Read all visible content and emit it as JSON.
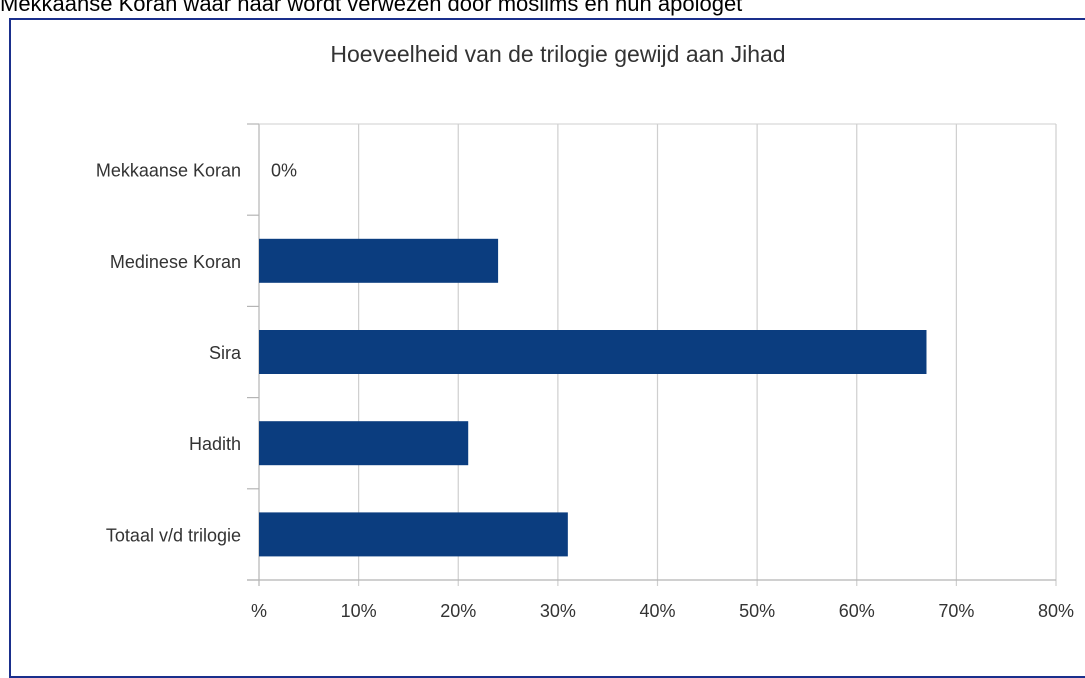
{
  "caption": "Mekkaanse Koran waar naar wordt verwezen door moslims en hun apologet",
  "colors": {
    "bar": "#0b3d7f",
    "grid": "#cfcfcf",
    "frame": "#1a2f8c",
    "text": "#333333"
  },
  "chart_data": {
    "type": "bar",
    "orientation": "horizontal",
    "title": "Hoeveelheid van de trilogie gewijd aan Jihad",
    "categories": [
      "Mekkaanse Koran",
      "Medinese Koran",
      "Sira",
      "Hadith",
      "Totaal v/d trilogie"
    ],
    "values": [
      0,
      24,
      67,
      21,
      31
    ],
    "data_labels": [
      "0%",
      "",
      "",
      "",
      ""
    ],
    "xlim": [
      0,
      80
    ],
    "xticks": [
      0,
      10,
      20,
      30,
      40,
      50,
      60,
      70,
      80
    ],
    "xtick_labels": [
      "%",
      "10%",
      "20%",
      "30%",
      "40%",
      "50%",
      "60%",
      "70%",
      "80%"
    ],
    "grid": true,
    "legend": "none"
  }
}
